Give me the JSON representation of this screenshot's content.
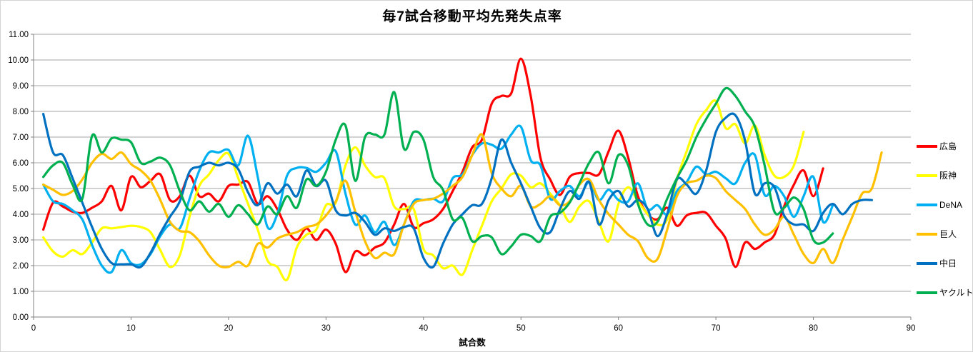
{
  "chart_data": {
    "type": "line",
    "title": "毎7試合移動平均先発失点率",
    "xlabel": "試合数",
    "ylabel": "",
    "xlim": [
      0,
      90
    ],
    "ylim": [
      0,
      11
    ],
    "x_ticks": [
      "0",
      "10",
      "20",
      "30",
      "40",
      "50",
      "60",
      "70",
      "80",
      "90"
    ],
    "y_ticks": [
      "0.00",
      "1.00",
      "2.00",
      "3.00",
      "4.00",
      "5.00",
      "6.00",
      "7.00",
      "8.00",
      "9.00",
      "10.00",
      "11.00"
    ],
    "grid": true,
    "smooth": true,
    "legend_position": "right",
    "x_start_game": 1,
    "series": [
      {
        "name": "広島",
        "color": "#FF0000",
        "values": [
          3.4,
          4.45,
          4.3,
          4.1,
          4.05,
          4.25,
          4.5,
          5.1,
          4.15,
          5.45,
          5.05,
          5.3,
          5.55,
          4.55,
          4.7,
          5.5,
          4.7,
          4.8,
          4.5,
          5.1,
          5.15,
          5.25,
          4.4,
          4.7,
          4.2,
          3.4,
          3.0,
          3.45,
          3.0,
          3.4,
          2.85,
          1.75,
          2.55,
          2.4,
          2.7,
          2.9,
          3.6,
          4.4,
          3.5,
          3.65,
          3.8,
          4.2,
          4.9,
          5.65,
          6.6,
          6.9,
          8.3,
          8.6,
          8.7,
          10.05,
          8.6,
          6.2,
          5.35,
          4.75,
          5.45,
          5.6,
          5.6,
          5.55,
          6.45,
          7.25,
          6.2,
          4.7,
          4.0,
          3.8,
          4.25,
          3.55,
          3.95,
          4.05,
          4.05,
          3.55,
          3.05,
          1.95,
          2.9,
          2.65,
          2.9,
          3.2,
          4.3,
          5.15,
          5.7,
          4.7,
          5.78
        ]
      },
      {
        "name": "阪神",
        "color": "#FFFF00",
        "values": [
          3.1,
          2.55,
          2.35,
          2.6,
          2.45,
          2.9,
          3.45,
          3.45,
          3.5,
          3.55,
          3.5,
          3.3,
          2.6,
          1.95,
          2.4,
          3.9,
          5.1,
          5.55,
          6.1,
          6.35,
          5.4,
          4.4,
          3.4,
          2.2,
          1.95,
          1.45,
          2.7,
          3.2,
          3.4,
          4.35,
          4.45,
          5.9,
          6.6,
          5.9,
          5.45,
          5.4,
          4.3,
          4.2,
          4.2,
          2.65,
          2.4,
          1.9,
          2.0,
          1.65,
          2.6,
          3.55,
          4.5,
          5.0,
          5.55,
          5.5,
          5.05,
          5.2,
          4.8,
          4.35,
          3.7,
          4.3,
          4.5,
          3.7,
          2.95,
          4.4,
          5.05,
          4.5,
          4.0,
          3.6,
          3.8,
          5.35,
          6.45,
          7.5,
          8.05,
          8.4,
          7.35,
          7.5,
          6.75,
          7.45,
          6.3,
          5.5,
          5.45,
          5.9,
          7.2
        ]
      },
      {
        "name": "DeNA",
        "color": "#00B0F0",
        "values": [
          5.15,
          4.5,
          4.4,
          4.15,
          3.8,
          2.8,
          2.0,
          1.75,
          2.6,
          2.1,
          2.05,
          2.45,
          3.15,
          3.6,
          3.45,
          4.6,
          5.7,
          6.4,
          6.4,
          6.5,
          5.9,
          7.05,
          5.45,
          3.5,
          4.0,
          5.5,
          5.8,
          5.8,
          5.65,
          6.0,
          6.45,
          4.8,
          3.6,
          3.95,
          3.3,
          3.7,
          2.8,
          3.6,
          4.5,
          4.55,
          4.6,
          4.5,
          5.4,
          5.55,
          6.3,
          6.75,
          6.7,
          6.55,
          7.1,
          7.4,
          6.1,
          5.9,
          4.6,
          4.9,
          5.1,
          4.7,
          5.25,
          4.55,
          4.95,
          4.55,
          4.5,
          5.2,
          4.2,
          4.35,
          4.0,
          4.9,
          5.25,
          5.85,
          5.55,
          5.65,
          5.4,
          5.2,
          6.0,
          6.3,
          4.75,
          5.1,
          4.7,
          3.9,
          4.7,
          5.45,
          3.7,
          4.35
        ]
      },
      {
        "name": "巨人",
        "color": "#FFC000",
        "values": [
          5.15,
          4.95,
          4.75,
          4.9,
          5.35,
          6.0,
          6.35,
          6.15,
          6.4,
          5.95,
          5.7,
          5.3,
          4.55,
          3.7,
          3.35,
          3.3,
          2.95,
          2.4,
          2.0,
          1.95,
          2.15,
          2.0,
          2.85,
          2.7,
          3.05,
          3.2,
          3.3,
          3.5,
          3.6,
          3.95,
          4.5,
          5.3,
          4.1,
          2.95,
          2.3,
          2.5,
          2.45,
          3.6,
          4.4,
          4.55,
          4.6,
          4.8,
          5.1,
          5.45,
          6.3,
          7.1,
          5.6,
          5.0,
          4.7,
          5.1,
          4.3,
          4.4,
          4.7,
          4.35,
          4.5,
          5.15,
          5.35,
          4.55,
          4.0,
          3.6,
          3.2,
          2.95,
          2.3,
          2.25,
          3.4,
          4.7,
          5.2,
          5.3,
          5.5,
          5.4,
          4.9,
          4.55,
          4.2,
          3.6,
          3.2,
          3.4,
          3.9,
          3.2,
          2.45,
          2.1,
          2.65,
          2.1,
          3.0,
          3.9,
          4.8,
          5.0,
          6.4
        ]
      },
      {
        "name": "中日",
        "color": "#0070C0",
        "values": [
          7.9,
          6.4,
          6.3,
          5.4,
          4.45,
          3.5,
          2.65,
          2.1,
          2.05,
          2.05,
          1.95,
          2.5,
          3.25,
          3.9,
          4.5,
          5.65,
          5.85,
          6.0,
          5.9,
          6.0,
          5.75,
          4.85,
          4.35,
          5.2,
          4.8,
          5.15,
          4.7,
          5.7,
          5.1,
          5.3,
          4.15,
          3.95,
          4.05,
          3.7,
          3.2,
          3.45,
          3.35,
          3.5,
          3.45,
          2.3,
          1.95,
          2.85,
          3.6,
          4.0,
          4.35,
          4.4,
          5.4,
          6.9,
          6.0,
          5.2,
          4.3,
          3.45,
          3.3,
          4.2,
          4.9,
          4.6,
          5.25,
          3.6,
          4.55,
          4.9,
          4.3,
          4.55,
          4.2,
          3.15,
          4.0,
          5.35,
          5.15,
          4.8,
          5.7,
          7.2,
          7.75,
          7.85,
          6.85,
          4.8,
          5.2,
          5.05,
          3.95,
          3.6,
          3.6,
          3.35,
          4.05,
          4.4,
          4.0,
          4.4,
          4.55,
          4.55
        ]
      },
      {
        "name": "ヤクルト",
        "color": "#00B050",
        "values": [
          5.45,
          5.9,
          6.0,
          5.15,
          4.6,
          7.05,
          6.4,
          6.95,
          6.9,
          6.8,
          6.0,
          6.05,
          6.2,
          5.9,
          4.9,
          4.15,
          4.5,
          4.1,
          4.4,
          3.9,
          4.35,
          4.0,
          3.6,
          4.3,
          4.0,
          4.7,
          4.25,
          5.35,
          5.1,
          5.65,
          6.9,
          7.45,
          5.3,
          7.0,
          7.1,
          7.1,
          8.75,
          6.55,
          7.2,
          6.9,
          5.45,
          4.95,
          3.8,
          3.85,
          2.95,
          3.15,
          3.1,
          2.45,
          2.75,
          3.2,
          3.15,
          2.95,
          3.9,
          4.05,
          4.45,
          5.2,
          6.0,
          6.4,
          5.2,
          6.3,
          5.9,
          4.4,
          3.6,
          3.7,
          4.6,
          5.4,
          6.1,
          7.0,
          7.7,
          8.3,
          8.9,
          8.6,
          8.0,
          7.4,
          5.9,
          4.1,
          4.25,
          4.65,
          4.2,
          3.0,
          2.9,
          3.25
        ]
      }
    ]
  }
}
